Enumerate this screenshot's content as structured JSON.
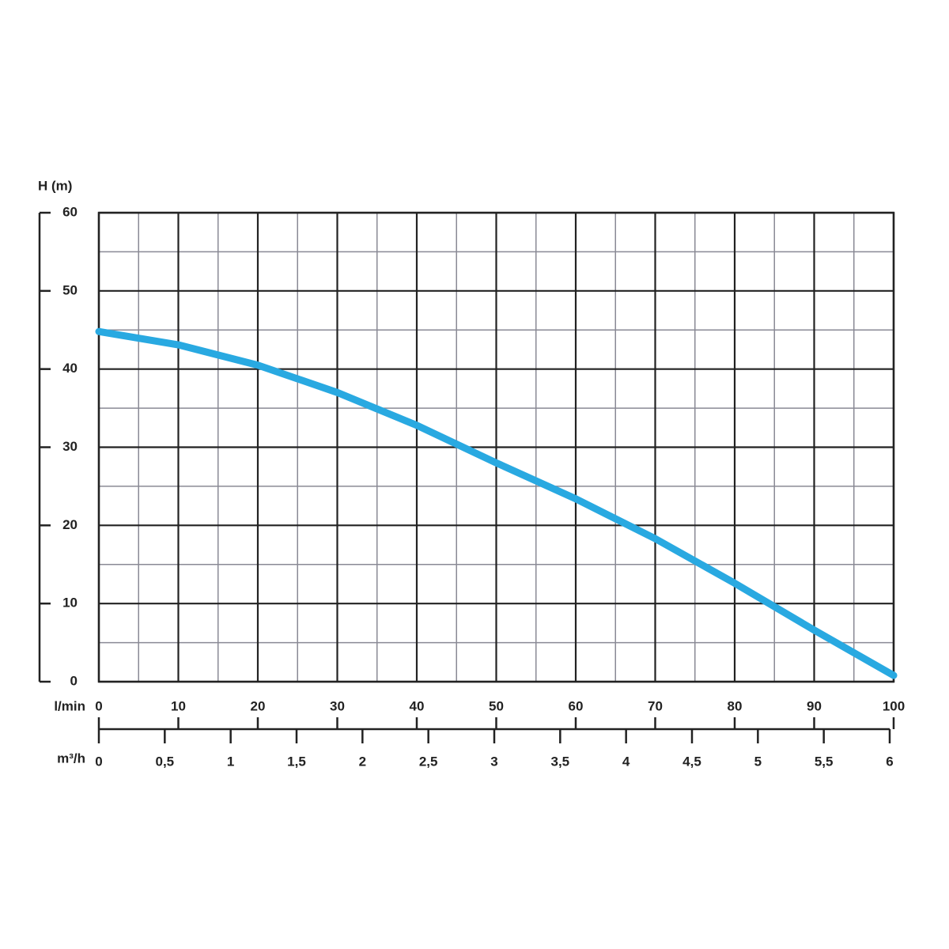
{
  "chart_data": {
    "type": "line",
    "y_label": "H (m)",
    "x_label": "l/min",
    "x2_label": "m³/h",
    "x": [
      0,
      10,
      20,
      30,
      40,
      50,
      60,
      70,
      80,
      90,
      100
    ],
    "series": [
      {
        "color": "#29a9e1",
        "values": [
          44.8,
          43.1,
          40.5,
          37,
          32.8,
          28,
          23.4,
          18.3,
          12.6,
          6.6,
          0.8
        ]
      }
    ],
    "xlim": [
      0,
      100
    ],
    "xticks": [
      0,
      10,
      20,
      30,
      40,
      50,
      60,
      70,
      80,
      90,
      100
    ],
    "ylim": [
      0,
      60
    ],
    "yticks": [
      0,
      10,
      20,
      30,
      40,
      50,
      60
    ],
    "x2lim": [
      0,
      6
    ],
    "x2ticks": [
      0,
      {
        "value": 0.5,
        "label": "0,5"
      },
      1,
      {
        "value": 1.5,
        "label": "1,5"
      },
      2,
      {
        "value": 2.5,
        "label": "2,5"
      },
      3,
      {
        "value": 3.5,
        "label": "3,5"
      },
      4,
      {
        "value": 4.5,
        "label": "4,5"
      },
      5,
      {
        "value": 5.5,
        "label": "5,5"
      },
      6
    ],
    "grid": true
  }
}
